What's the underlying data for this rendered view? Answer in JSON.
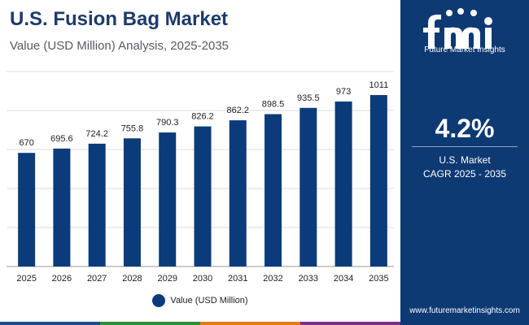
{
  "header": {
    "title": "U.S. Fusion Bag Market",
    "subtitle": "Value (USD Million) Analysis, 2025-2035"
  },
  "chart_data": {
    "type": "bar",
    "title": "U.S. Fusion Bag Market",
    "subtitle": "Value (USD Million) Analysis, 2025-2035",
    "categories": [
      "2025",
      "2026",
      "2027",
      "2028",
      "2029",
      "2030",
      "2031",
      "2032",
      "2033",
      "2034",
      "2035"
    ],
    "series": [
      {
        "name": "Value (USD Million)",
        "values": [
          670,
          695.6,
          724.2,
          755.8,
          790.3,
          826.2,
          862.2,
          898.5,
          935.5,
          973,
          1011
        ],
        "labels": [
          "670",
          "695.6",
          "724.2",
          "755.8",
          "790.3",
          "826.2",
          "862.2",
          "898.5",
          "935.5",
          "973",
          "1011"
        ]
      }
    ],
    "xlabel": "",
    "ylabel": "",
    "ylim": [
      0,
      1150
    ],
    "grid": true,
    "legend_position": "bottom-center"
  },
  "legend": {
    "label": "Value (USD Million)"
  },
  "sidebar": {
    "logo_text": "Future Market Insights",
    "cagr_value": "4.2%",
    "cagr_label_1": "U.S. Market",
    "cagr_label_2": "CAGR 2025 - 2035",
    "website": "www.futuremarketinsights.com"
  },
  "colors": {
    "bar": "#0b3b7a",
    "sidebar_bg": "#0e3a73",
    "title": "#1d3a6b",
    "gridline": "#dcdcdc",
    "strip": [
      "#1f4e8c",
      "#2f8f3a",
      "#e07b1a",
      "#7a2f8c"
    ]
  }
}
